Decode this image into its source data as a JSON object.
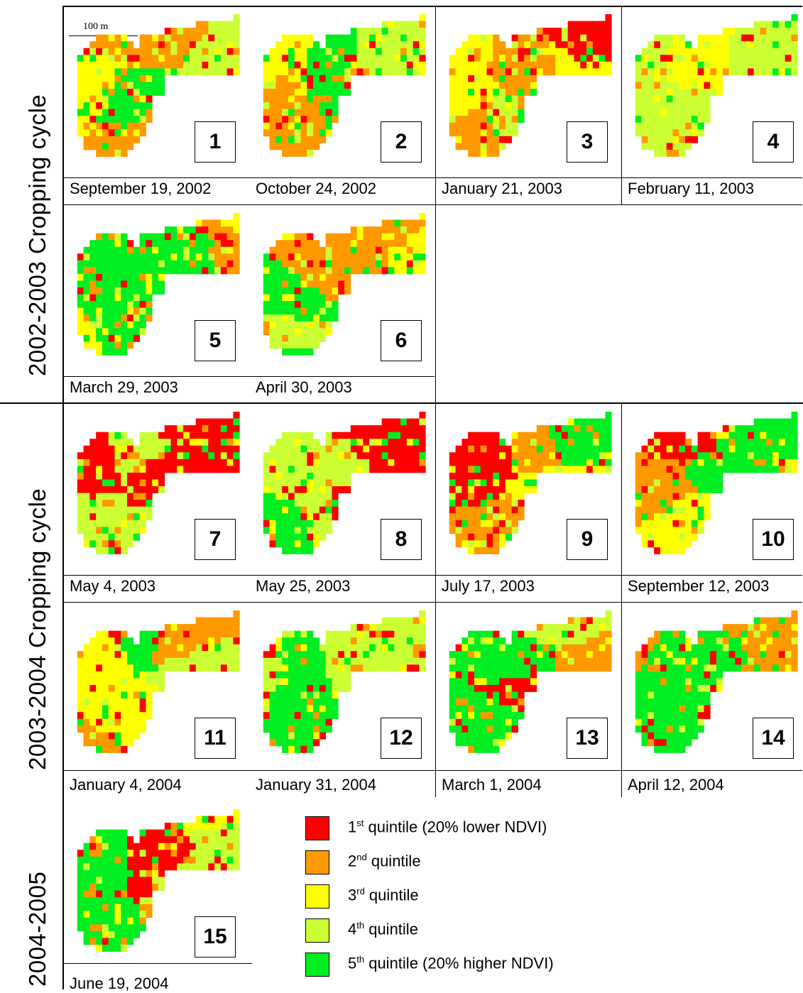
{
  "cycles": [
    {
      "label": "2002-2003 Cropping cycle"
    },
    {
      "label": "2003-2004 Cropping cycle"
    },
    {
      "label": "2004-2005"
    }
  ],
  "scale_bar": {
    "label": "100 m"
  },
  "panels": [
    {
      "number": "1",
      "date": "September 19, 2002"
    },
    {
      "number": "2",
      "date": "October 24, 2002"
    },
    {
      "number": "3",
      "date": "January 21, 2003"
    },
    {
      "number": "4",
      "date": "February 11, 2003"
    },
    {
      "number": "5",
      "date": "March 29, 2003"
    },
    {
      "number": "6",
      "date": "April 30, 2003"
    },
    {
      "number": "7",
      "date": "May 4, 2003"
    },
    {
      "number": "8",
      "date": "May 25, 2003"
    },
    {
      "number": "9",
      "date": "July 17, 2003"
    },
    {
      "number": "10",
      "date": "September 12, 2003"
    },
    {
      "number": "11",
      "date": "January 4, 2004"
    },
    {
      "number": "12",
      "date": "January 31, 2004"
    },
    {
      "number": "13",
      "date": "March 1, 2004"
    },
    {
      "number": "14",
      "date": "April 12, 2004"
    },
    {
      "number": "15",
      "date": "June 19, 2004"
    }
  ],
  "legend": [
    {
      "ordinal": "1",
      "suffix": "st",
      "text": " quintile (20% lower NDVI)",
      "color": "#ff0000"
    },
    {
      "ordinal": "2",
      "suffix": "nd",
      "text": " quintile",
      "color": "#ff9900"
    },
    {
      "ordinal": "3",
      "suffix": "rd",
      "text": " quintile",
      "color": "#ffff00"
    },
    {
      "ordinal": "4",
      "suffix": "th",
      "text": " quintile",
      "color": "#ccff33"
    },
    {
      "ordinal": "5",
      "suffix": "th",
      "text": " quintile (20% higher NDVI)",
      "color": "#00ee22"
    }
  ]
}
